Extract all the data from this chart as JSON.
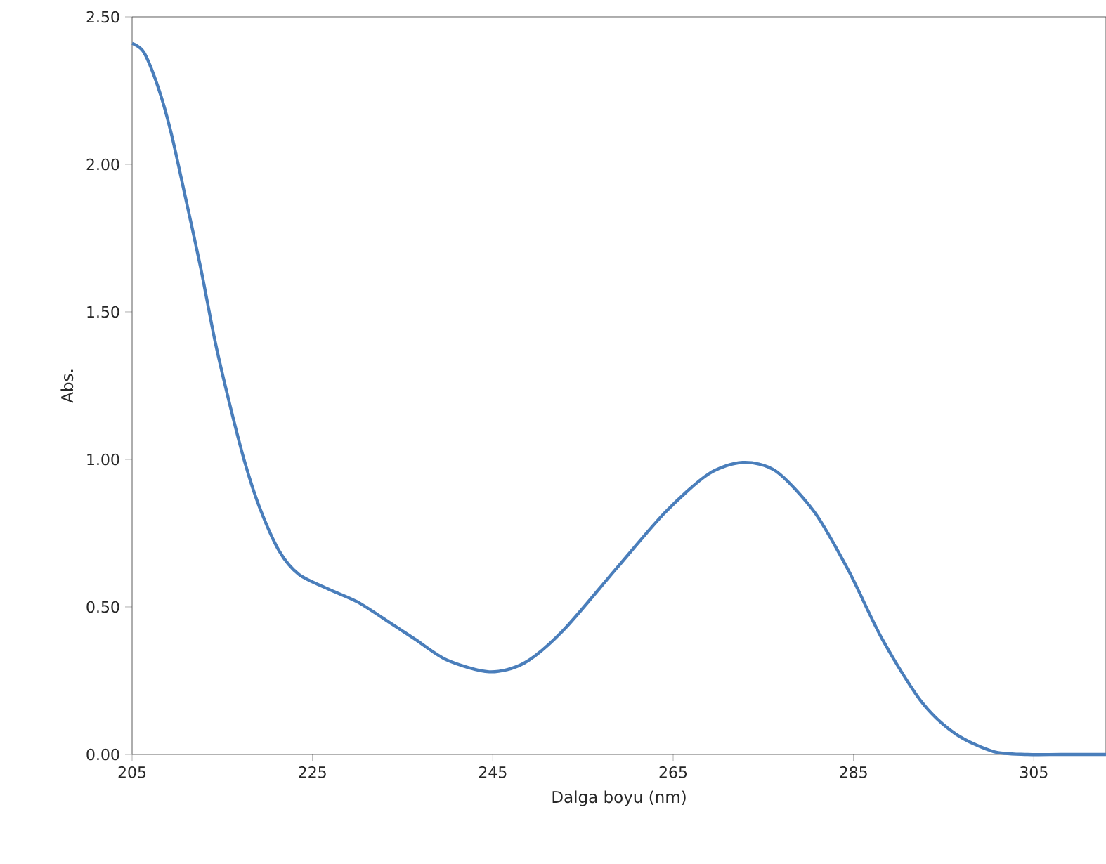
{
  "chart_data": {
    "type": "line",
    "xlabel": "Dalga boyu (nm)",
    "ylabel": "Abs.",
    "xlim": [
      205,
      313
    ],
    "xticks": [
      205,
      225,
      245,
      265,
      285,
      305
    ],
    "ylim": [
      0,
      2.5
    ],
    "yticks": [
      {
        "value": 0,
        "label": "0.00"
      },
      {
        "value": 0.5,
        "label": "0.50"
      },
      {
        "value": 1,
        "label": "1.00"
      },
      {
        "value": 1.5,
        "label": "1.50"
      },
      {
        "value": 2,
        "label": "2.00"
      },
      {
        "value": 2.5,
        "label": "2.50"
      }
    ],
    "grid": false,
    "marker": "none",
    "line_style": "solid",
    "series": [
      {
        "color": "#4a7ebb",
        "x": [
          205.0,
          206.3,
          207.9,
          209.3,
          210.9,
          212.6,
          214.2,
          215.8,
          217.5,
          219.1,
          221.3,
          223.5,
          226.8,
          230.1,
          233.9,
          236.4,
          239.9,
          244.6,
          248.5,
          252.8,
          258.7,
          264.1,
          268.9,
          272.7,
          276.4,
          280.7,
          284.5,
          288.2,
          292.5,
          296.3,
          300.5,
          304.3,
          308.0,
          313.0
        ],
        "values": [
          2.41,
          2.38,
          2.26,
          2.11,
          1.89,
          1.65,
          1.4,
          1.19,
          0.99,
          0.84,
          0.69,
          0.61,
          0.56,
          0.515,
          0.44,
          0.39,
          0.32,
          0.28,
          0.31,
          0.42,
          0.63,
          0.82,
          0.95,
          0.99,
          0.96,
          0.82,
          0.62,
          0.39,
          0.18,
          0.07,
          0.01,
          0.0,
          0.0,
          0.0
        ]
      }
    ]
  }
}
